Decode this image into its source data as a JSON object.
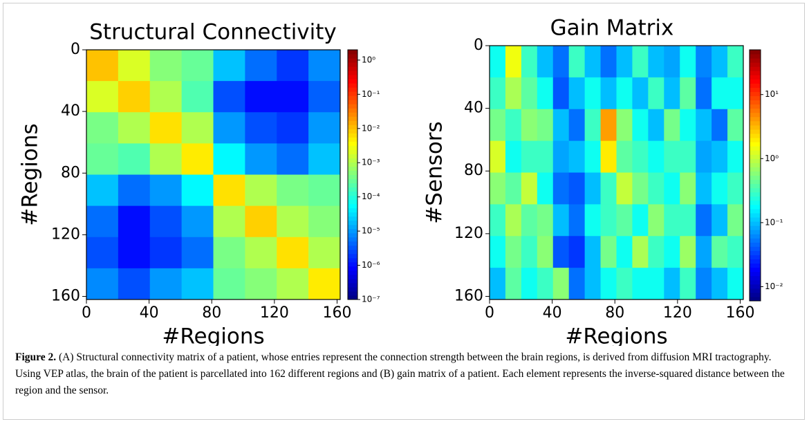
{
  "chart_data": [
    {
      "type": "heatmap",
      "title": "Structural Connectivity",
      "xlabel": "#Regions",
      "ylabel": "#Regions",
      "xlim": [
        0,
        162
      ],
      "ylim": [
        0,
        162
      ],
      "xticks": [
        0,
        40,
        80,
        120,
        160
      ],
      "yticks": [
        0,
        40,
        80,
        120,
        160
      ],
      "colormap": "jet",
      "log_scale": true,
      "clim": [
        1e-07,
        2
      ],
      "cticks": [
        {
          "value": 1e-07,
          "label": "10⁻⁷"
        },
        {
          "value": 1e-06,
          "label": "10⁻⁶"
        },
        {
          "value": 1e-05,
          "label": "10⁻⁵"
        },
        {
          "value": 0.0001,
          "label": "10⁻⁴"
        },
        {
          "value": 0.001,
          "label": "10⁻³"
        },
        {
          "value": 0.01,
          "label": "10⁻²"
        },
        {
          "value": 0.1,
          "label": "10⁻¹"
        },
        {
          "value": 1,
          "label": "10⁰"
        }
      ],
      "values": [
        [
          0.01,
          0.002,
          0.0005,
          0.0003,
          2e-05,
          5e-06,
          2e-06,
          8e-06
        ],
        [
          0.002,
          0.008,
          0.001,
          0.0002,
          3e-06,
          1e-06,
          1e-06,
          4e-06
        ],
        [
          0.0004,
          0.001,
          0.006,
          0.001,
          1e-05,
          3e-06,
          2e-06,
          1e-05
        ],
        [
          0.0003,
          0.0002,
          0.001,
          0.005,
          5e-05,
          1e-05,
          5e-06,
          2e-05
        ],
        [
          2e-05,
          5e-06,
          1e-05,
          5e-05,
          0.006,
          0.001,
          0.0004,
          0.0003
        ],
        [
          5e-06,
          1e-06,
          3e-06,
          1e-05,
          0.001,
          0.008,
          0.001,
          0.0005
        ],
        [
          3e-06,
          1e-06,
          2e-06,
          5e-06,
          0.0004,
          0.001,
          0.006,
          0.001
        ],
        [
          8e-06,
          3e-06,
          1e-05,
          2e-05,
          0.0003,
          0.0005,
          0.001,
          0.005
        ]
      ]
    },
    {
      "type": "heatmap",
      "title": "Gain Matrix",
      "xlabel": "#Regions",
      "ylabel": "#Sensors",
      "xlim": [
        0,
        162
      ],
      "ylim": [
        0,
        162
      ],
      "xticks": [
        0,
        40,
        80,
        120,
        160
      ],
      "yticks": [
        0,
        40,
        80,
        120,
        160
      ],
      "colormap": "jet",
      "log_scale": true,
      "clim": [
        0.006,
        50
      ],
      "cticks": [
        {
          "value": 0.01,
          "label": "10⁻²"
        },
        {
          "value": 0.1,
          "label": "10⁻¹"
        },
        {
          "value": 1,
          "label": "10⁰"
        },
        {
          "value": 10,
          "label": "10¹"
        }
      ],
      "values": [
        [
          0.2,
          1.5,
          0.3,
          0.1,
          0.05,
          0.3,
          0.1,
          0.05,
          0.1,
          0.3,
          0.1,
          0.08,
          0.2,
          0.06,
          0.1,
          0.3
        ],
        [
          0.3,
          0.8,
          0.4,
          0.2,
          0.04,
          0.1,
          0.2,
          0.1,
          0.2,
          0.1,
          0.3,
          0.1,
          0.4,
          0.05,
          0.2,
          0.2
        ],
        [
          0.5,
          0.3,
          0.6,
          0.5,
          0.1,
          0.05,
          0.3,
          4,
          0.6,
          0.2,
          0.1,
          0.5,
          0.2,
          0.1,
          0.05,
          0.4
        ],
        [
          1.2,
          0.2,
          0.3,
          0.3,
          0.08,
          0.1,
          0.2,
          2,
          0.4,
          0.3,
          0.2,
          0.3,
          0.3,
          0.08,
          0.1,
          0.2
        ],
        [
          0.6,
          0.4,
          1,
          0.2,
          0.05,
          0.04,
          0.1,
          0.3,
          1,
          0.5,
          0.3,
          0.2,
          0.6,
          0.1,
          0.2,
          0.3
        ],
        [
          0.3,
          0.8,
          0.4,
          0.5,
          0.1,
          0.05,
          0.2,
          0.3,
          0.4,
          0.2,
          0.6,
          0.3,
          0.3,
          0.05,
          0.1,
          0.5
        ],
        [
          0.2,
          0.5,
          0.3,
          0.6,
          0.04,
          0.03,
          0.1,
          0.5,
          0.2,
          0.8,
          0.3,
          0.2,
          0.7,
          0.08,
          0.4,
          0.3
        ],
        [
          0.1,
          0.4,
          0.2,
          0.3,
          0.6,
          0.05,
          0.1,
          0.2,
          0.3,
          0.2,
          0.2,
          0.1,
          0.3,
          0.06,
          0.1,
          0.2
        ]
      ]
    }
  ],
  "caption": {
    "label": "Figure 2.",
    "text": " (A) Structural connectivity matrix of a patient, whose entries represent the connection strength between the brain regions, is derived from diffusion MRI tractography. Using VEP atlas, the brain of the patient is parcellated into 162 different regions and (B) gain matrix of a patient. Each element represents the inverse-squared distance between the region and the sensor."
  }
}
